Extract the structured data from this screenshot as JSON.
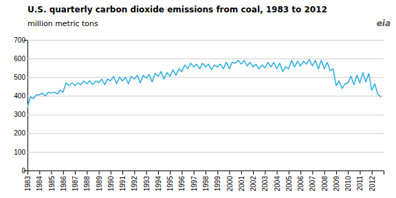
{
  "chart_data": {
    "type": "line",
    "title": "U.S. quarterly carbon  dioxide emissions from coal, 1983 to 2012",
    "subtitle": "million metric tons",
    "annotations": [
      "eia"
    ],
    "color": "#29ABE2",
    "grid": true,
    "xlim": [
      1983,
      2013
    ],
    "xticks": [
      1983,
      1984,
      1985,
      1986,
      1987,
      1988,
      1989,
      1990,
      1991,
      1992,
      1993,
      1994,
      1995,
      1996,
      1997,
      1998,
      1999,
      2000,
      2001,
      2002,
      2003,
      2004,
      2005,
      2006,
      2007,
      2008,
      2009,
      2010,
      2011,
      2012
    ],
    "ylim": [
      0,
      700
    ],
    "yticks": [
      0,
      100,
      200,
      300,
      400,
      500,
      600,
      700
    ],
    "x": [
      1983,
      1983.25,
      1983.5,
      1983.75,
      1984,
      1984.25,
      1984.5,
      1984.75,
      1985,
      1985.25,
      1985.5,
      1985.75,
      1986,
      1986.25,
      1986.5,
      1986.75,
      1987,
      1987.25,
      1987.5,
      1987.75,
      1988,
      1988.25,
      1988.5,
      1988.75,
      1989,
      1989.25,
      1989.5,
      1989.75,
      1990,
      1990.25,
      1990.5,
      1990.75,
      1991,
      1991.25,
      1991.5,
      1991.75,
      1992,
      1992.25,
      1992.5,
      1992.75,
      1993,
      1993.25,
      1993.5,
      1993.75,
      1994,
      1994.25,
      1994.5,
      1994.75,
      1995,
      1995.25,
      1995.5,
      1995.75,
      1996,
      1996.25,
      1996.5,
      1996.75,
      1997,
      1997.25,
      1997.5,
      1997.75,
      1998,
      1998.25,
      1998.5,
      1998.75,
      1999,
      1999.25,
      1999.5,
      1999.75,
      2000,
      2000.25,
      2000.5,
      2000.75,
      2001,
      2001.25,
      2001.5,
      2001.75,
      2002,
      2002.25,
      2002.5,
      2002.75,
      2003,
      2003.25,
      2003.5,
      2003.75,
      2004,
      2004.25,
      2004.5,
      2004.75,
      2005,
      2005.25,
      2005.5,
      2005.75,
      2006,
      2006.25,
      2006.5,
      2006.75,
      2007,
      2007.25,
      2007.5,
      2007.75,
      2008,
      2008.25,
      2008.5,
      2008.75,
      2009,
      2009.25,
      2009.5,
      2009.75,
      2010,
      2010.25,
      2010.5,
      2010.75,
      2011,
      2011.25,
      2011.5,
      2011.75,
      2012,
      2012.25,
      2012.5,
      2012.75
    ],
    "values": [
      340,
      395,
      385,
      405,
      405,
      415,
      400,
      420,
      415,
      420,
      410,
      430,
      420,
      470,
      455,
      470,
      455,
      470,
      460,
      480,
      465,
      480,
      460,
      480,
      470,
      490,
      460,
      490,
      480,
      505,
      465,
      500,
      480,
      500,
      465,
      505,
      490,
      510,
      470,
      510,
      495,
      515,
      475,
      520,
      505,
      530,
      490,
      525,
      505,
      540,
      510,
      545,
      530,
      565,
      545,
      575,
      555,
      570,
      545,
      575,
      555,
      570,
      540,
      565,
      555,
      570,
      545,
      580,
      545,
      580,
      575,
      590,
      570,
      590,
      560,
      580,
      555,
      570,
      545,
      565,
      550,
      580,
      555,
      580,
      545,
      575,
      530,
      555,
      545,
      590,
      555,
      585,
      560,
      585,
      570,
      595,
      560,
      590,
      545,
      590,
      545,
      580,
      535,
      545,
      455,
      480,
      440,
      465,
      470,
      505,
      460,
      510,
      470,
      525,
      475,
      520,
      430,
      465,
      410,
      395
    ]
  }
}
